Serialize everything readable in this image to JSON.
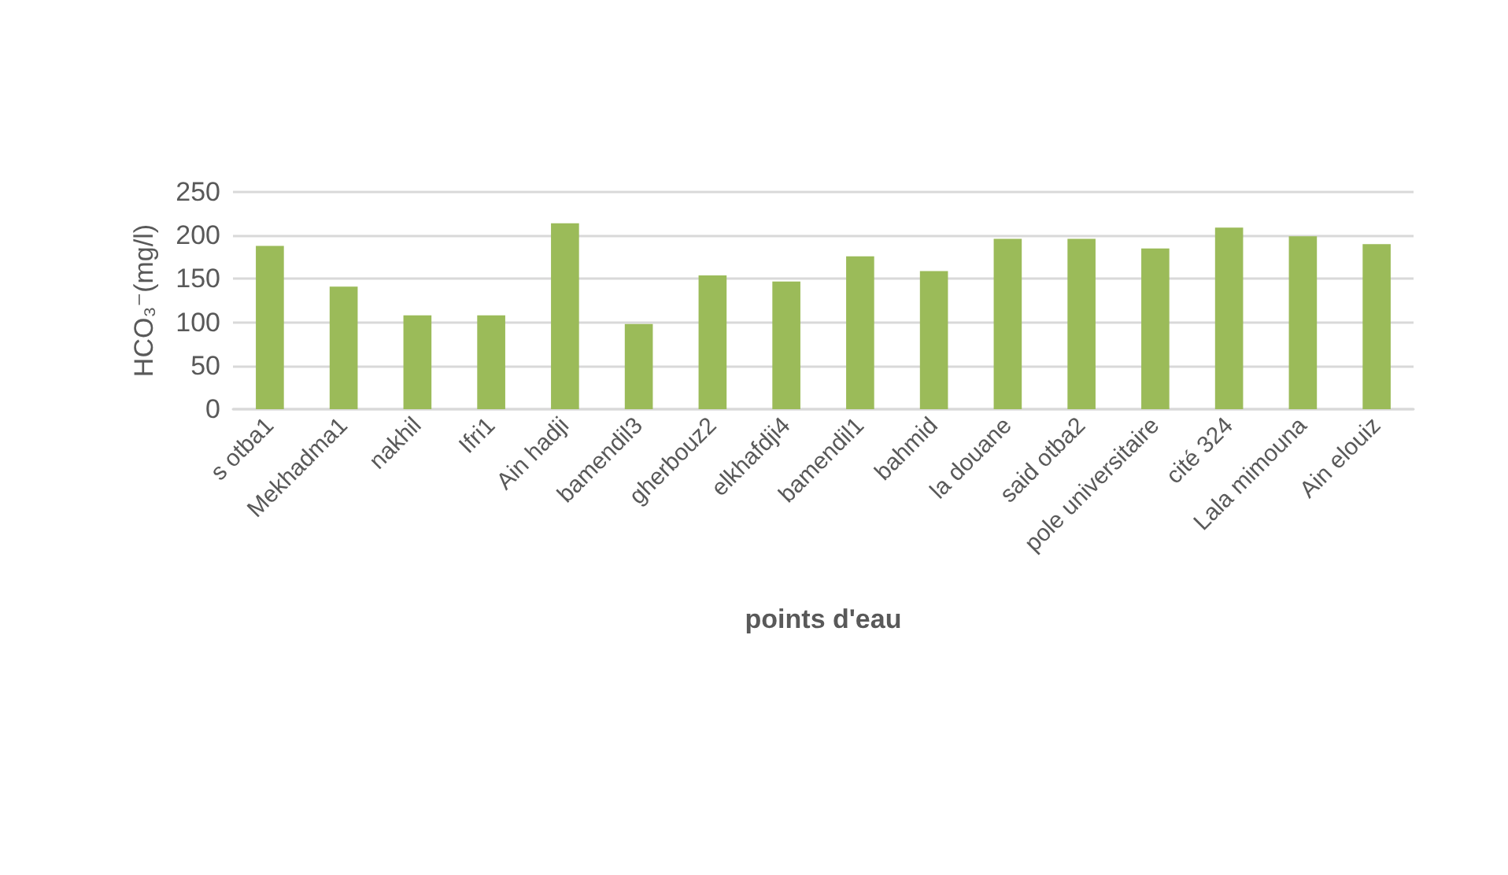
{
  "chart_data": {
    "type": "bar",
    "xlabel": "points d'eau",
    "ylabel": "HCO₃⁻(mg/l)",
    "categories": [
      "s otba1",
      "Mekhadma1",
      "nakhil",
      "Ifri1",
      "Ain hadji",
      "bamendil3",
      "gherbouz2",
      "elkhafdji4",
      "bamendil1",
      "bahmid",
      "la douane",
      "said otba2",
      "pole universitaire",
      "cité 324",
      "Lala mimouna",
      "Ain elouiz"
    ],
    "values": [
      188,
      141,
      108,
      108,
      214,
      98,
      154,
      147,
      176,
      159,
      196,
      196,
      185,
      209,
      199,
      190
    ],
    "color": "#9bbb59",
    "ylim": [
      0,
      250
    ],
    "yticks": [
      0,
      50,
      100,
      150,
      200,
      250
    ],
    "grid": "y"
  }
}
